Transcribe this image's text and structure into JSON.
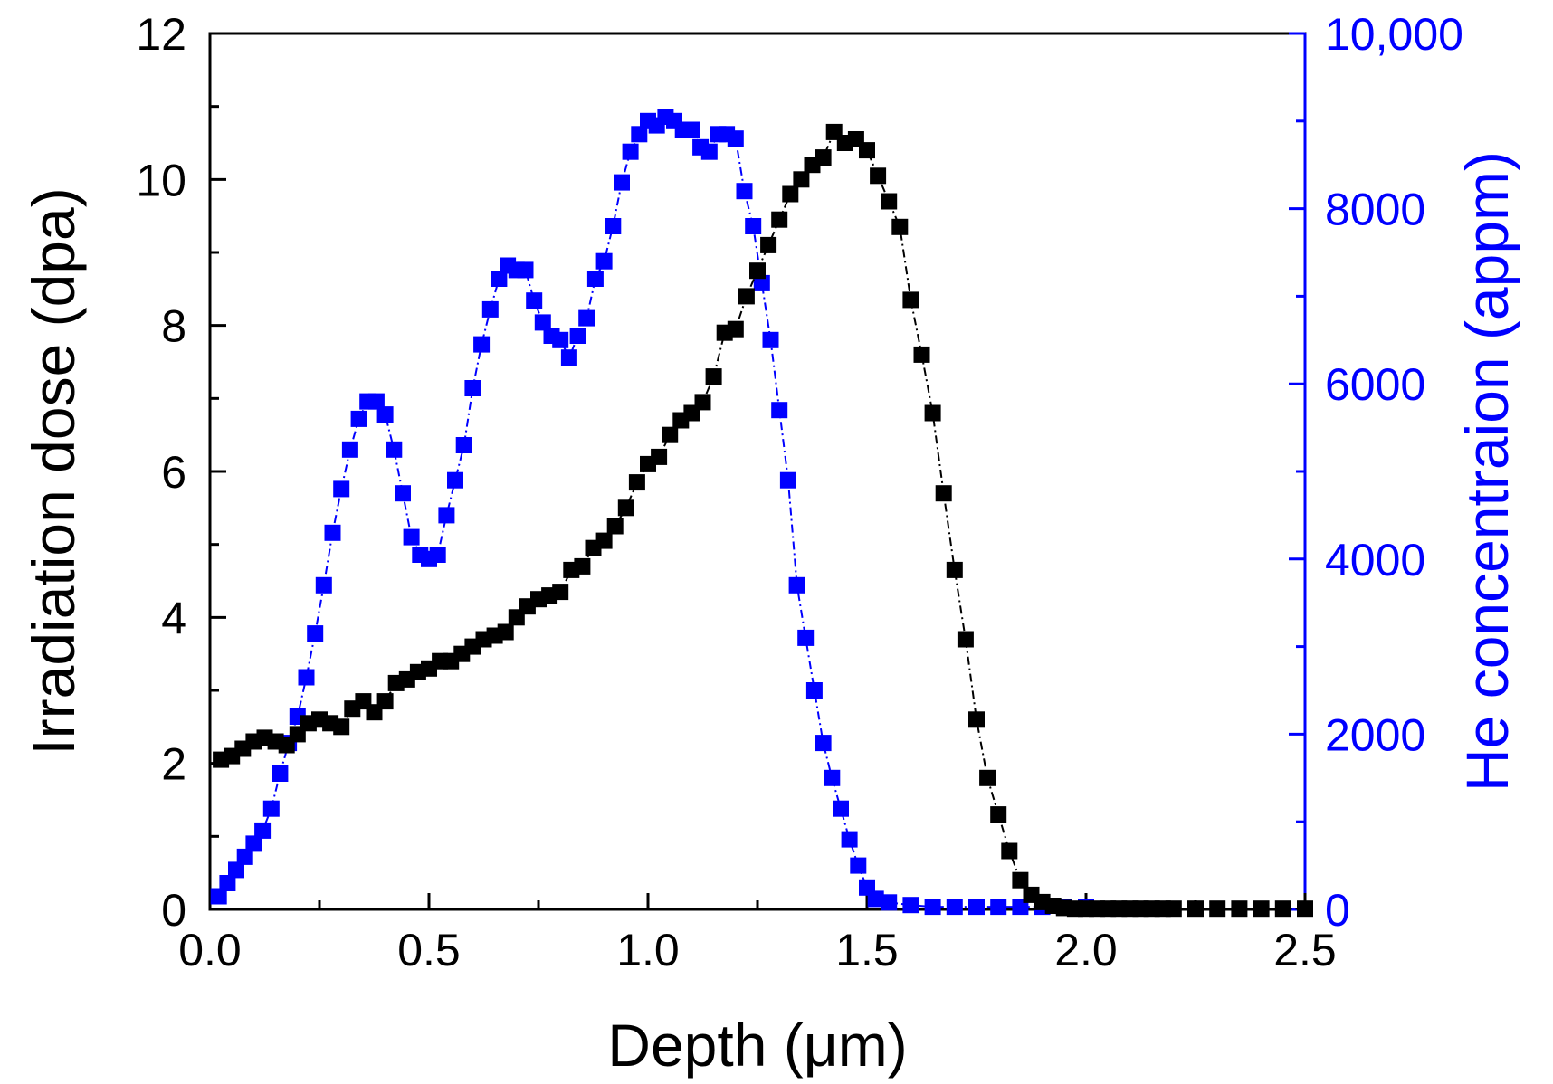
{
  "chart_data": {
    "type": "scatter",
    "title": "",
    "xlabel": "Depth (μm)",
    "ylabel": "Irradiation dose (dpa)",
    "y2label": "He concentraion (appm)",
    "xlim": [
      0,
      2.5
    ],
    "ylim": [
      0,
      12
    ],
    "y2lim": [
      0,
      10000
    ],
    "x_ticks": [
      "0.0",
      "0.5",
      "1.0",
      "1.5",
      "2.0",
      "2.5"
    ],
    "y_ticks": [
      "0",
      "2",
      "4",
      "6",
      "8",
      "10",
      "12"
    ],
    "y2_ticks": [
      "0",
      "2000",
      "4000",
      "6000",
      "8000",
      "10,000"
    ],
    "colors": {
      "dose": "#000000",
      "he": "#0000ff",
      "axis": "#000000",
      "axis2": "#0000ff"
    },
    "series": [
      {
        "name": "Irradiation dose",
        "axis": "left",
        "color": "#000000",
        "x": [
          0.025,
          0.05,
          0.075,
          0.1,
          0.125,
          0.15,
          0.175,
          0.2,
          0.225,
          0.25,
          0.275,
          0.3,
          0.325,
          0.35,
          0.375,
          0.4,
          0.425,
          0.45,
          0.475,
          0.5,
          0.525,
          0.55,
          0.575,
          0.6,
          0.625,
          0.65,
          0.675,
          0.7,
          0.725,
          0.75,
          0.775,
          0.8,
          0.825,
          0.85,
          0.875,
          0.9,
          0.925,
          0.95,
          0.975,
          1.0,
          1.025,
          1.05,
          1.075,
          1.1,
          1.125,
          1.15,
          1.175,
          1.2,
          1.225,
          1.25,
          1.275,
          1.3,
          1.325,
          1.35,
          1.375,
          1.4,
          1.425,
          1.45,
          1.475,
          1.5,
          1.525,
          1.55,
          1.575,
          1.6,
          1.625,
          1.65,
          1.675,
          1.7,
          1.725,
          1.75,
          1.775,
          1.8,
          1.825,
          1.85,
          1.875,
          1.9,
          1.925,
          1.95,
          1.975,
          2.0,
          2.025,
          2.05,
          2.075,
          2.1,
          2.125,
          2.15,
          2.175,
          2.2,
          2.25,
          2.3,
          2.35,
          2.4,
          2.45,
          2.5
        ],
        "values": [
          2.05,
          2.1,
          2.2,
          2.3,
          2.35,
          2.3,
          2.25,
          2.4,
          2.55,
          2.6,
          2.55,
          2.5,
          2.75,
          2.85,
          2.7,
          2.85,
          3.1,
          3.15,
          3.25,
          3.3,
          3.4,
          3.4,
          3.5,
          3.6,
          3.7,
          3.75,
          3.8,
          4.0,
          4.15,
          4.25,
          4.3,
          4.35,
          4.65,
          4.7,
          4.95,
          5.05,
          5.25,
          5.5,
          5.85,
          6.1,
          6.2,
          6.5,
          6.7,
          6.8,
          6.95,
          7.3,
          7.9,
          7.95,
          8.4,
          8.75,
          9.1,
          9.45,
          9.8,
          10.0,
          10.2,
          10.3,
          10.65,
          10.5,
          10.55,
          10.4,
          10.05,
          9.7,
          9.35,
          8.35,
          7.6,
          6.8,
          5.7,
          4.65,
          3.7,
          2.6,
          1.8,
          1.3,
          0.8,
          0.4,
          0.2,
          0.1,
          0.05,
          0.02,
          0.01,
          0.01,
          0.01,
          0.01,
          0.01,
          0.01,
          0.01,
          0.01,
          0.01,
          0.01,
          0.01,
          0.01,
          0.01,
          0.01,
          0.01,
          0.01
        ]
      },
      {
        "name": "He concentration",
        "axis": "right",
        "color": "#0000ff",
        "x": [
          0.02,
          0.04,
          0.06,
          0.08,
          0.1,
          0.12,
          0.14,
          0.16,
          0.18,
          0.2,
          0.22,
          0.24,
          0.26,
          0.28,
          0.3,
          0.32,
          0.34,
          0.36,
          0.38,
          0.4,
          0.42,
          0.44,
          0.46,
          0.48,
          0.5,
          0.52,
          0.54,
          0.56,
          0.58,
          0.6,
          0.62,
          0.64,
          0.66,
          0.68,
          0.7,
          0.72,
          0.74,
          0.76,
          0.78,
          0.8,
          0.82,
          0.84,
          0.86,
          0.88,
          0.9,
          0.92,
          0.94,
          0.96,
          0.98,
          1.0,
          1.02,
          1.04,
          1.06,
          1.08,
          1.1,
          1.12,
          1.14,
          1.16,
          1.18,
          1.2,
          1.22,
          1.24,
          1.26,
          1.28,
          1.3,
          1.32,
          1.34,
          1.36,
          1.38,
          1.4,
          1.42,
          1.44,
          1.46,
          1.48,
          1.5,
          1.52,
          1.55,
          1.6,
          1.65,
          1.7,
          1.75,
          1.8,
          1.85,
          1.9,
          1.95,
          2.0
        ],
        "values": [
          150,
          300,
          450,
          600,
          750,
          900,
          1150,
          1550,
          1900,
          2200,
          2650,
          3150,
          3700,
          4300,
          4800,
          5250,
          5600,
          5800,
          5800,
          5650,
          5250,
          4750,
          4250,
          4050,
          4000,
          4050,
          4500,
          4900,
          5300,
          5950,
          6450,
          6850,
          7200,
          7350,
          7300,
          7300,
          6950,
          6700,
          6550,
          6500,
          6300,
          6550,
          6750,
          7200,
          7400,
          7800,
          8300,
          8650,
          8850,
          9000,
          8950,
          9050,
          9000,
          8900,
          8900,
          8700,
          8650,
          8850,
          8850,
          8800,
          8200,
          7800,
          7150,
          6500,
          5700,
          4900,
          3700,
          3100,
          2500,
          1900,
          1500,
          1150,
          800,
          500,
          250,
          120,
          80,
          50,
          30,
          30,
          30,
          30,
          30,
          30,
          30,
          30
        ]
      }
    ]
  }
}
